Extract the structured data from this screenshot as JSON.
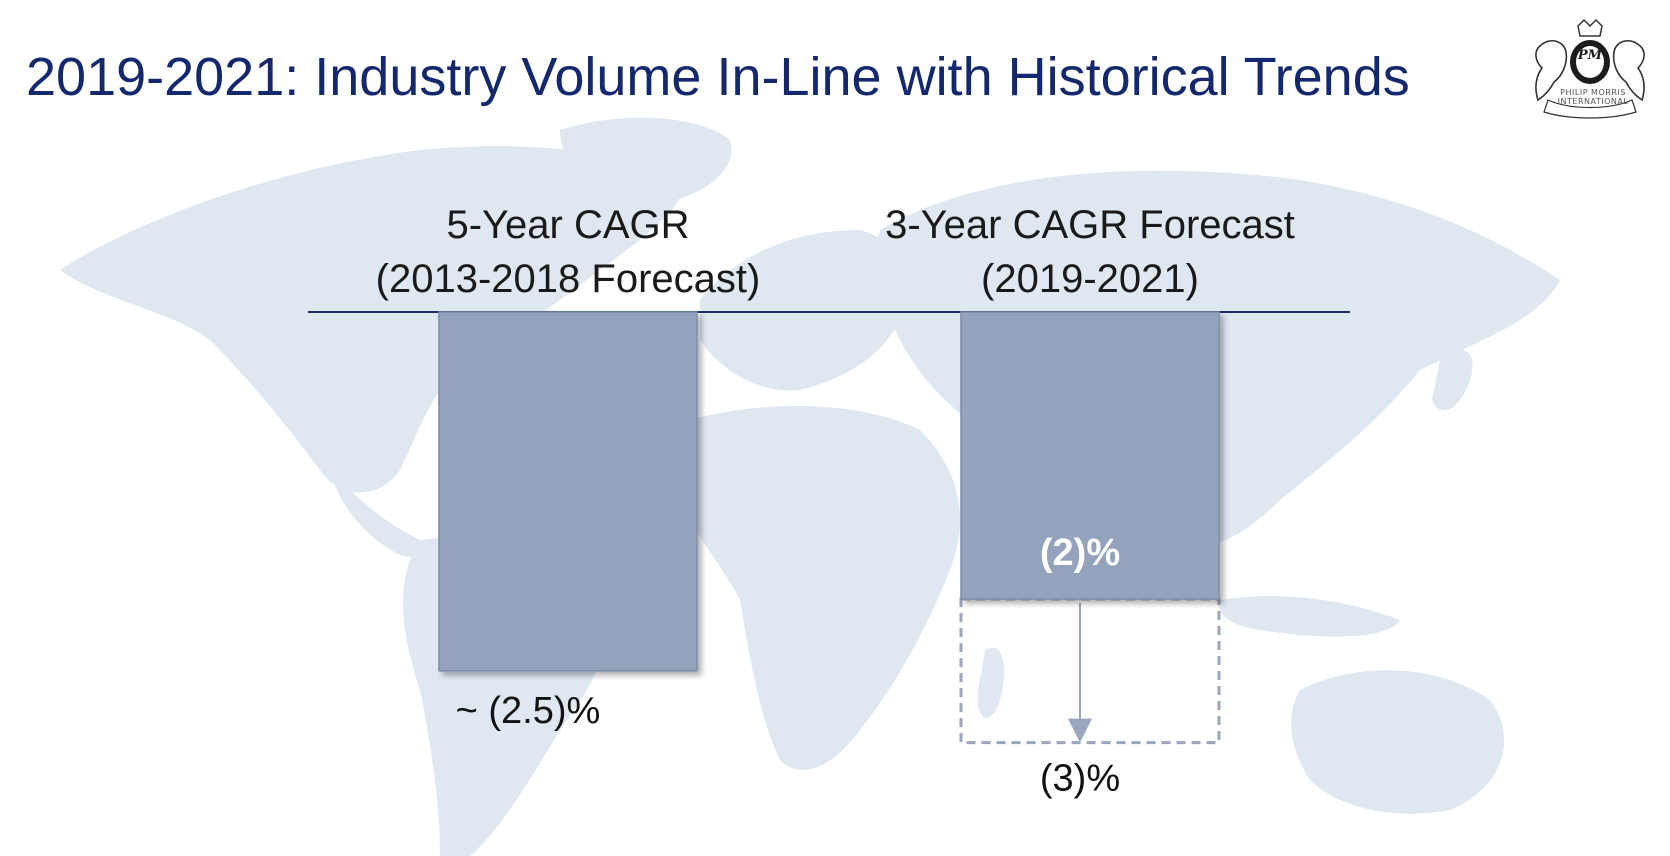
{
  "title": "2019-2021: Industry Volume In-Line with Historical Trends",
  "logo": {
    "icon": "philip-morris-crest",
    "text": "PHILIP MORRIS INTERNATIONAL",
    "monogram": "PM"
  },
  "colors": {
    "title": "#142870",
    "bar": "#94a3bb",
    "bar_edge": "#7d8ba6",
    "axis": "#1e2e6b",
    "map": "#dfe8f1",
    "range_border": "#9aa6bd"
  },
  "chart_data": {
    "type": "bar",
    "categories": [
      {
        "line1": "5-Year CAGR",
        "line2": "(2013-2018 Forecast)"
      },
      {
        "line1": "3-Year CAGR Forecast",
        "line2": "(2019-2021)"
      }
    ],
    "values": [
      -2.5,
      -2
    ],
    "range": {
      "category_index": 1,
      "from": -2,
      "to": -3
    },
    "value_labels": [
      "~ (2.5)%",
      "(2)%"
    ],
    "range_label": "(3)%",
    "ylim": [
      -3.4,
      0
    ],
    "grid": false,
    "legend": "none"
  }
}
